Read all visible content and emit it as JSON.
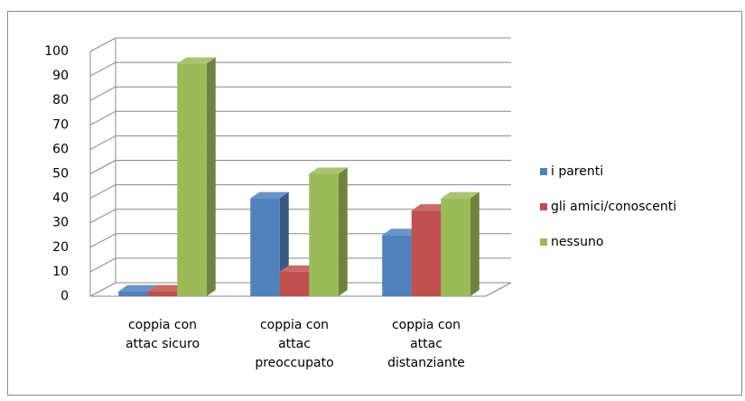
{
  "chart_data": {
    "type": "bar3d",
    "categories": [
      [
        "coppia con",
        "attac sicuro"
      ],
      [
        "coppia con",
        "attac",
        "preoccupato"
      ],
      [
        "coppia con",
        "attac",
        "distanziante"
      ]
    ],
    "series": [
      {
        "name": "i parenti",
        "color": "#4f81bd",
        "values": [
          2,
          40,
          25
        ]
      },
      {
        "name": "gli amici/conoscenti",
        "color": "#c0504d",
        "values": [
          2,
          10,
          35
        ]
      },
      {
        "name": "nessuno",
        "color": "#9bbb59",
        "values": [
          95,
          50,
          40
        ]
      }
    ],
    "ylim": [
      0,
      100
    ],
    "yticks": [
      0,
      10,
      20,
      30,
      40,
      50,
      60,
      70,
      80,
      90,
      100
    ],
    "grid": true,
    "legend": "right"
  }
}
